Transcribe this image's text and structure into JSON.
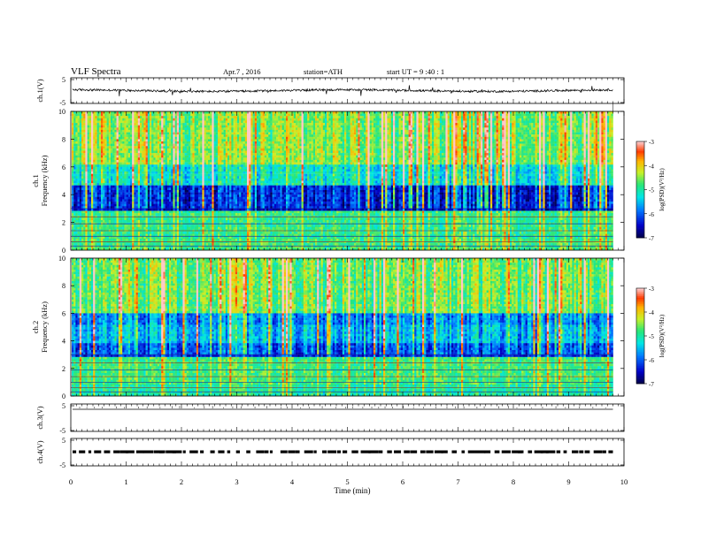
{
  "header": {
    "title": "VLF  Spectra",
    "date": "Apr.7  , 2016",
    "station": "station=ATH",
    "start": "start  UT  =   9  :40 : 1"
  },
  "chart_data": [
    {
      "type": "line",
      "title": "",
      "ylabel": "ch.1(V)",
      "ylim": [
        -5,
        5
      ],
      "yticks": [
        "5",
        "-5"
      ],
      "description_values": {
        "baseline": 0,
        "color": "#000000"
      }
    },
    {
      "type": "heatmap",
      "ylabel": "ch.1\nFrequency  (kHz)",
      "ylabel_lines": [
        "ch.1",
        "Frequency  (kHz)"
      ],
      "ylim": [
        0,
        10
      ],
      "yticks": [
        "0",
        "2",
        "4",
        "6",
        "8",
        "10"
      ],
      "colorbar": {
        "label": "log(PSD)(V²/Hz)",
        "range": [
          -7,
          -3
        ],
        "ticks": [
          "-3",
          "-4",
          "-5",
          "-6",
          "-7"
        ]
      }
    },
    {
      "type": "heatmap",
      "ylabel_lines": [
        "ch.2",
        "Frequency  (kHz)"
      ],
      "ylim": [
        0,
        10
      ],
      "yticks": [
        "0",
        "2",
        "4",
        "6",
        "8",
        "10"
      ],
      "colorbar": {
        "label": "log(PSD)(V²/Hz)",
        "range": [
          -7,
          -3
        ],
        "ticks": [
          "-3",
          "-4",
          "-5",
          "-6",
          "-7"
        ]
      }
    },
    {
      "type": "line",
      "ylabel": "ch.3(V)",
      "ylim": [
        -5,
        5
      ],
      "yticks": [
        "5",
        "-5"
      ]
    },
    {
      "type": "line",
      "ylabel": "ch.4(V)",
      "ylim": [
        -5,
        5
      ],
      "yticks": [
        "5",
        "-5"
      ]
    }
  ],
  "xaxis": {
    "label": "Time  (min)",
    "xlim": [
      0,
      10
    ],
    "ticks": [
      "0",
      "1",
      "2",
      "3",
      "4",
      "5",
      "6",
      "7",
      "8",
      "9",
      "10"
    ],
    "data_end_min": 9.8
  }
}
